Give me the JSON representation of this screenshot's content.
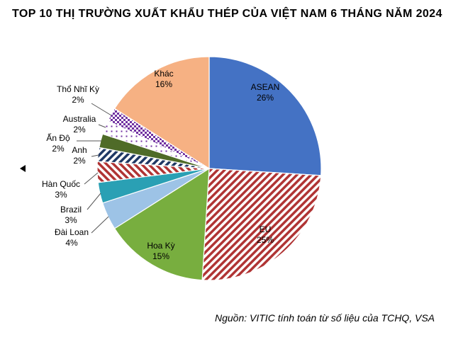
{
  "title": "TOP 10 THỊ TRƯỜNG XUẤT KHẨU THÉP CỦA VIỆT NAM 6 THÁNG NĂM 2024",
  "source": "Nguồn: VITIC tính toán từ số liệu của TCHQ, VSA",
  "chart_data": {
    "type": "pie",
    "title": "TOP 10 THỊ TRƯỜNG XUẤT KHẨU THÉP CỦA VIỆT NAM 6 THÁNG NĂM 2024",
    "unit": "%",
    "start_angle_deg": 0,
    "direction": "clockwise",
    "legend_position": "none",
    "label_style": "inside-for-large-slices, outside-callouts-for-small-slices",
    "segments": [
      {
        "label": "ASEAN",
        "value": 26,
        "pct_label": "26%",
        "color": "#4472C4",
        "pattern": "solid",
        "label_placement": "inside"
      },
      {
        "label": "EU",
        "value": 25,
        "pct_label": "25%",
        "color": "#B03434",
        "pattern": "diag-up",
        "label_placement": "inside"
      },
      {
        "label": "Hoa Kỳ",
        "value": 15,
        "pct_label": "15%",
        "color": "#78AE3F",
        "pattern": "solid",
        "label_placement": "inside"
      },
      {
        "label": "Đài Loan",
        "value": 4,
        "pct_label": "4%",
        "color": "#9DC3E6",
        "pattern": "solid",
        "label_placement": "outside"
      },
      {
        "label": "Brazil",
        "value": 3,
        "pct_label": "3%",
        "color": "#2AA0B4",
        "pattern": "solid",
        "label_placement": "outside"
      },
      {
        "label": "Hàn Quốc",
        "value": 3,
        "pct_label": "3%",
        "color": "#B03434",
        "pattern": "diag-down",
        "label_placement": "outside"
      },
      {
        "label": "Anh",
        "value": 2,
        "pct_label": "2%",
        "color": "#1F3864",
        "pattern": "diag-up",
        "label_placement": "outside"
      },
      {
        "label": "Ấn Độ",
        "value": 2,
        "pct_label": "2%",
        "color": "#4F6B28",
        "pattern": "solid",
        "label_placement": "outside"
      },
      {
        "label": "Australia",
        "value": 2,
        "pct_label": "2%",
        "color": "#7030A0",
        "pattern": "dots",
        "label_placement": "outside"
      },
      {
        "label": "Thổ Nhĩ Kỳ",
        "value": 2,
        "pct_label": "2%",
        "color": "#7030A0",
        "pattern": "check",
        "label_placement": "outside"
      },
      {
        "label": "Khác",
        "value": 16,
        "pct_label": "16%",
        "color": "#F6B183",
        "pattern": "solid",
        "label_placement": "inside"
      }
    ]
  }
}
